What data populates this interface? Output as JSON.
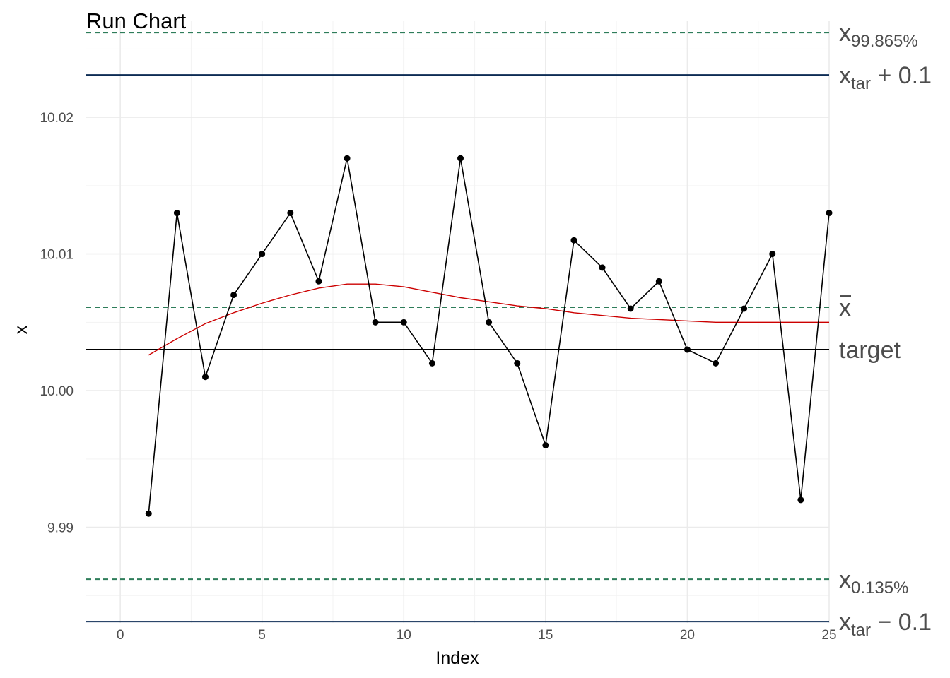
{
  "chart_data": {
    "type": "line",
    "title": "Run Chart",
    "xlabel": "Index",
    "ylabel": "x",
    "xlim": [
      1,
      25
    ],
    "ylim": [
      9.983,
      10.026
    ],
    "x_ticks": [
      0,
      5,
      10,
      15,
      20,
      25
    ],
    "y_ticks": [
      9.99,
      10.0,
      10.01,
      10.02
    ],
    "y_tick_labels": [
      "9.99",
      "10.00",
      "10.01",
      "10.02"
    ],
    "grid": true,
    "series": [
      {
        "x": [
          1,
          2,
          3,
          4,
          5,
          6,
          7,
          8,
          9,
          10,
          11,
          12,
          13,
          14,
          15,
          16,
          17,
          18,
          19,
          20,
          21,
          22,
          23,
          24,
          25
        ],
        "values": [
          9.991,
          10.013,
          10.001,
          10.007,
          10.01,
          10.013,
          10.008,
          10.017,
          10.005,
          10.005,
          10.002,
          10.017,
          10.005,
          10.002,
          9.996,
          10.011,
          10.009,
          10.006,
          10.008,
          10.003,
          10.002,
          10.006,
          10.01,
          9.992,
          10.013
        ],
        "color": "#000000"
      }
    ],
    "smooth_curve": {
      "color": "#cc0000",
      "x": [
        1,
        2,
        3,
        4,
        5,
        6,
        7,
        8,
        9,
        10,
        11,
        12,
        13,
        14,
        15,
        16,
        17,
        18,
        19,
        20,
        21,
        22,
        23,
        24,
        25
      ],
      "values": [
        10.0026,
        10.0038,
        10.0049,
        10.0057,
        10.0064,
        10.007,
        10.0075,
        10.0078,
        10.0078,
        10.0076,
        10.0072,
        10.0068,
        10.0065,
        10.0062,
        10.006,
        10.0057,
        10.0055,
        10.0053,
        10.0052,
        10.0051,
        10.005,
        10.005,
        10.005,
        10.005,
        10.005
      ]
    },
    "reference_lines": [
      {
        "id": "upper-percentile",
        "y": 10.0262,
        "style": "dashed",
        "color": "#2e7d5a",
        "label": "x",
        "sub": "99.865%",
        "tail": ""
      },
      {
        "id": "upper-tolerance",
        "y": 10.0231,
        "style": "solid",
        "color": "#0d2c54",
        "label": "x",
        "sub": "tar",
        "tail": " + 0.1"
      },
      {
        "id": "mean",
        "y": 10.0061,
        "style": "dashed",
        "color": "#2e7d5a",
        "label": "x",
        "sub": "",
        "tail": "",
        "bar": true
      },
      {
        "id": "target",
        "y": 10.003,
        "style": "solid",
        "color": "#000000",
        "label": "target",
        "sub": "",
        "tail": ""
      },
      {
        "id": "lower-percentile",
        "y": 9.9862,
        "style": "dashed",
        "color": "#2e7d5a",
        "label": "x",
        "sub": "0.135%",
        "tail": ""
      },
      {
        "id": "lower-tolerance",
        "y": 9.9831,
        "style": "solid",
        "color": "#0d2c54",
        "label": "x",
        "sub": "tar",
        "tail": " − 0.1"
      }
    ]
  }
}
